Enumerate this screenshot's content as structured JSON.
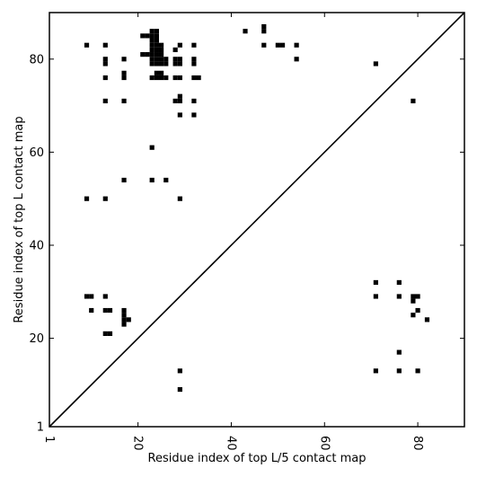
{
  "chart_data": {
    "type": "heatmap",
    "title": "",
    "xlabel": "Residue index of top L/5 contact map",
    "ylabel": "Residue index of top L contact map",
    "xlim": [
      1,
      90
    ],
    "ylim": [
      1,
      90
    ],
    "xticks": [
      1,
      20,
      40,
      60,
      80
    ],
    "yticks": [
      1,
      20,
      40,
      60,
      80
    ],
    "x_tick_rotation_deg": -90,
    "grid": false,
    "legend": "none",
    "diagonal": {
      "from": [
        1,
        1
      ],
      "to": [
        90,
        90
      ]
    },
    "cell_color": "#000000",
    "upper_triangle_points": [
      [
        9,
        83
      ],
      [
        13,
        83
      ],
      [
        13,
        80
      ],
      [
        13,
        79
      ],
      [
        13,
        76
      ],
      [
        13,
        71
      ],
      [
        17,
        80
      ],
      [
        17,
        77
      ],
      [
        17,
        76
      ],
      [
        17,
        71
      ],
      [
        17,
        54
      ],
      [
        13,
        50
      ],
      [
        9,
        50
      ],
      [
        21,
        85
      ],
      [
        22,
        85
      ],
      [
        23,
        86
      ],
      [
        24,
        86
      ],
      [
        23,
        85
      ],
      [
        24,
        85
      ],
      [
        23,
        84
      ],
      [
        24,
        84
      ],
      [
        23,
        83
      ],
      [
        24,
        83
      ],
      [
        25,
        83
      ],
      [
        23,
        82
      ],
      [
        24,
        82
      ],
      [
        25,
        82
      ],
      [
        21,
        81
      ],
      [
        22,
        81
      ],
      [
        23,
        81
      ],
      [
        24,
        81
      ],
      [
        25,
        81
      ],
      [
        23,
        80
      ],
      [
        24,
        80
      ],
      [
        25,
        80
      ],
      [
        26,
        80
      ],
      [
        23,
        79
      ],
      [
        24,
        79
      ],
      [
        25,
        79
      ],
      [
        26,
        79
      ],
      [
        24,
        77
      ],
      [
        25,
        77
      ],
      [
        23,
        76
      ],
      [
        24,
        76
      ],
      [
        25,
        76
      ],
      [
        26,
        76
      ],
      [
        28,
        82
      ],
      [
        28,
        80
      ],
      [
        28,
        79
      ],
      [
        29,
        83
      ],
      [
        29,
        80
      ],
      [
        29,
        79
      ],
      [
        28,
        76
      ],
      [
        29,
        76
      ],
      [
        29,
        72
      ],
      [
        28,
        71
      ],
      [
        29,
        71
      ],
      [
        29,
        68
      ],
      [
        32,
        83
      ],
      [
        32,
        80
      ],
      [
        32,
        79
      ],
      [
        32,
        76
      ],
      [
        33,
        76
      ],
      [
        32,
        71
      ],
      [
        32,
        68
      ],
      [
        23,
        61
      ],
      [
        23,
        54
      ],
      [
        26,
        54
      ],
      [
        29,
        50
      ],
      [
        43,
        86
      ],
      [
        47,
        87
      ],
      [
        47,
        86
      ],
      [
        47,
        83
      ],
      [
        50,
        83
      ],
      [
        51,
        83
      ],
      [
        54,
        83
      ],
      [
        54,
        80
      ],
      [
        71,
        79
      ],
      [
        79,
        71
      ]
    ],
    "lower_triangle_points": [
      [
        9,
        29
      ],
      [
        10,
        29
      ],
      [
        13,
        29
      ],
      [
        10,
        26
      ],
      [
        13,
        26
      ],
      [
        14,
        26
      ],
      [
        17,
        26
      ],
      [
        17,
        25
      ],
      [
        17,
        24
      ],
      [
        18,
        24
      ],
      [
        17,
        23
      ],
      [
        13,
        21
      ],
      [
        14,
        21
      ],
      [
        29,
        13
      ],
      [
        29,
        9
      ],
      [
        71,
        32
      ],
      [
        76,
        32
      ],
      [
        71,
        29
      ],
      [
        76,
        29
      ],
      [
        79,
        29
      ],
      [
        80,
        29
      ],
      [
        79,
        28
      ],
      [
        80,
        26
      ],
      [
        79,
        25
      ],
      [
        82,
        24
      ],
      [
        76,
        17
      ],
      [
        71,
        13
      ],
      [
        76,
        13
      ],
      [
        80,
        13
      ]
    ]
  }
}
